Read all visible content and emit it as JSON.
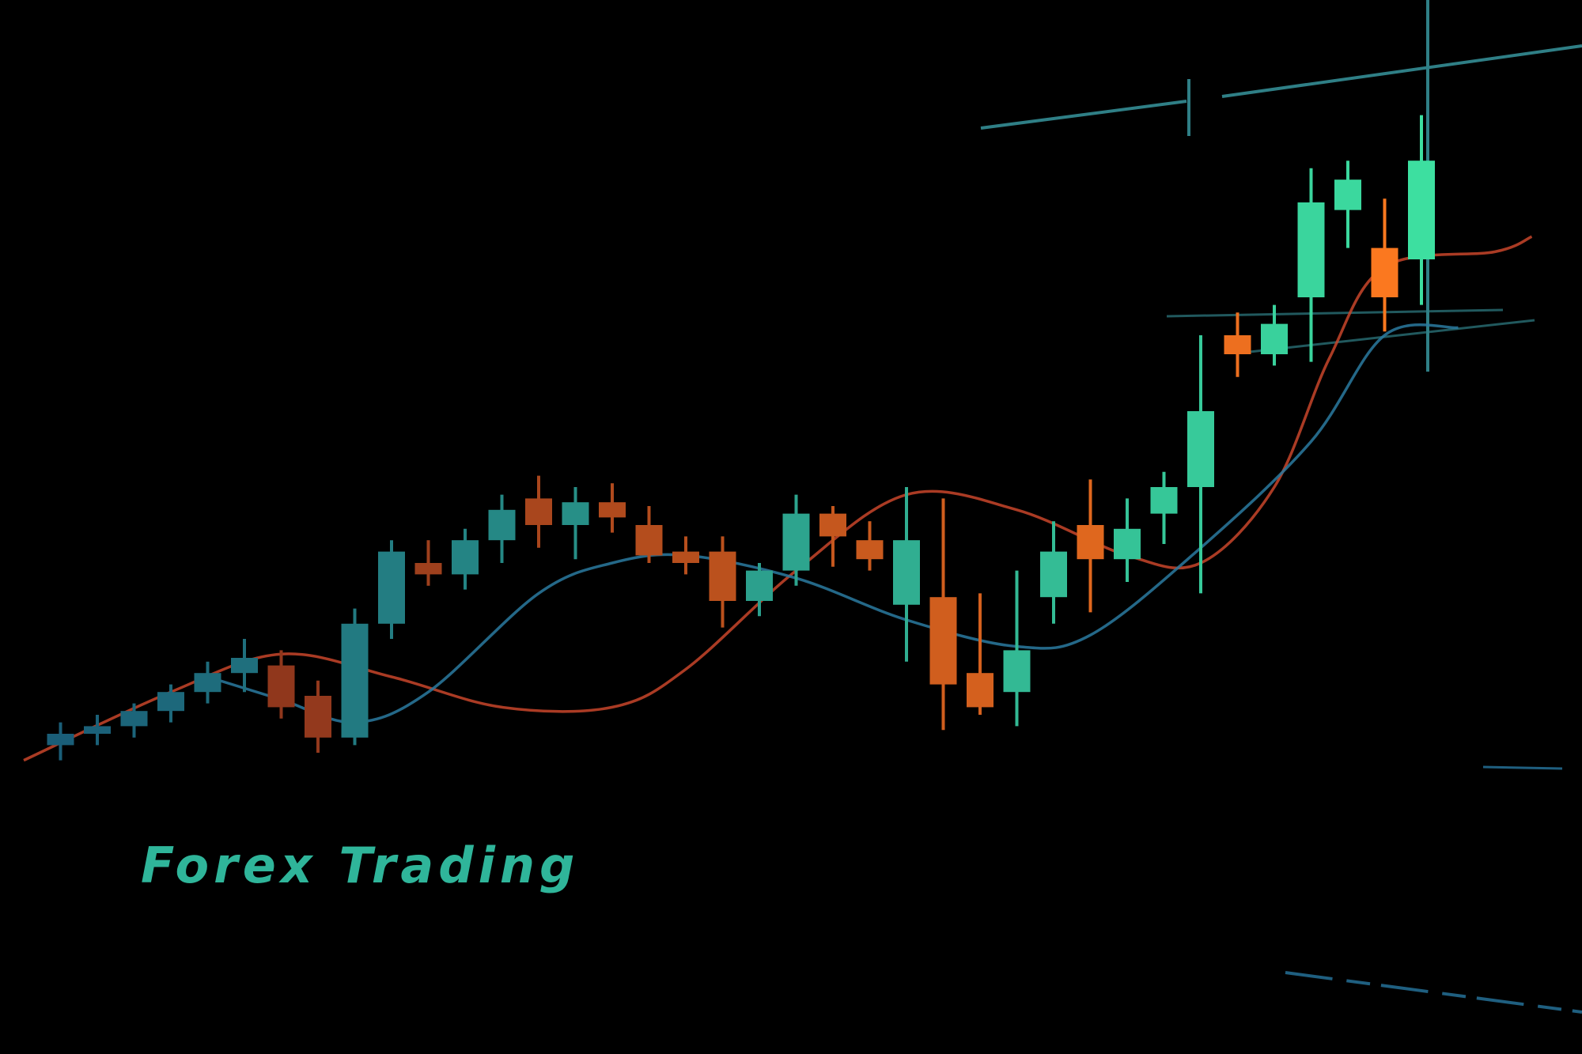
{
  "caption": {
    "text": "Forex Trading",
    "color": "#2fb59a"
  },
  "colors": {
    "background": "#000000",
    "bullish_low": "#1a5e78",
    "bullish_high": "#3ddfa0",
    "bearish_low": "#7a2a1c",
    "bearish_high": "#ff7a1f",
    "ma_red": "#c8452a",
    "ma_blue": "#2a7aa0",
    "level_line": "#2f7f86"
  },
  "chart_data": {
    "type": "candlestick",
    "title": "",
    "xlabel": "",
    "ylabel": "",
    "grid": false,
    "ylim": [
      0,
      100
    ],
    "candles": [
      {
        "x": 1,
        "open": 6.0,
        "high": 9.0,
        "low": 4.0,
        "close": 7.5
      },
      {
        "x": 2,
        "open": 7.5,
        "high": 10.0,
        "low": 6.0,
        "close": 8.5
      },
      {
        "x": 3,
        "open": 8.5,
        "high": 11.5,
        "low": 7.0,
        "close": 10.5
      },
      {
        "x": 4,
        "open": 10.5,
        "high": 14.0,
        "low": 9.0,
        "close": 13.0
      },
      {
        "x": 5,
        "open": 13.0,
        "high": 17.0,
        "low": 11.5,
        "close": 15.5
      },
      {
        "x": 6,
        "open": 15.5,
        "high": 20.0,
        "low": 13.0,
        "close": 17.5
      },
      {
        "x": 7,
        "open": 16.5,
        "high": 18.5,
        "low": 9.5,
        "close": 11.0
      },
      {
        "x": 8,
        "open": 12.5,
        "high": 14.5,
        "low": 5.0,
        "close": 7.0
      },
      {
        "x": 9,
        "open": 7.0,
        "high": 24.0,
        "low": 6.0,
        "close": 22.0
      },
      {
        "x": 10,
        "open": 22.0,
        "high": 33.0,
        "low": 20.0,
        "close": 31.5
      },
      {
        "x": 11,
        "open": 30.0,
        "high": 33.0,
        "low": 27.0,
        "close": 28.5
      },
      {
        "x": 12,
        "open": 28.5,
        "high": 34.5,
        "low": 26.5,
        "close": 33.0
      },
      {
        "x": 13,
        "open": 33.0,
        "high": 39.0,
        "low": 30.0,
        "close": 37.0
      },
      {
        "x": 14,
        "open": 38.5,
        "high": 41.5,
        "low": 32.0,
        "close": 35.0
      },
      {
        "x": 15,
        "open": 35.0,
        "high": 40.0,
        "low": 30.5,
        "close": 38.0
      },
      {
        "x": 16,
        "open": 38.0,
        "high": 40.5,
        "low": 34.0,
        "close": 36.0
      },
      {
        "x": 17,
        "open": 35.0,
        "high": 37.5,
        "low": 30.0,
        "close": 31.0
      },
      {
        "x": 18,
        "open": 31.5,
        "high": 33.5,
        "low": 28.5,
        "close": 30.0
      },
      {
        "x": 19,
        "open": 31.5,
        "high": 33.5,
        "low": 21.5,
        "close": 25.0
      },
      {
        "x": 20,
        "open": 25.0,
        "high": 30.0,
        "low": 23.0,
        "close": 29.0
      },
      {
        "x": 21,
        "open": 29.0,
        "high": 39.0,
        "low": 27.0,
        "close": 36.5
      },
      {
        "x": 22,
        "open": 36.5,
        "high": 37.5,
        "low": 29.5,
        "close": 33.5
      },
      {
        "x": 23,
        "open": 33.0,
        "high": 35.5,
        "low": 29.0,
        "close": 30.5
      },
      {
        "x": 24,
        "open": 24.5,
        "high": 40.0,
        "low": 17.0,
        "close": 33.0
      },
      {
        "x": 25,
        "open": 25.5,
        "high": 38.5,
        "low": 8.0,
        "close": 14.0
      },
      {
        "x": 26,
        "open": 15.5,
        "high": 26.0,
        "low": 10.0,
        "close": 11.0
      },
      {
        "x": 27,
        "open": 13.0,
        "high": 29.0,
        "low": 8.5,
        "close": 18.5
      },
      {
        "x": 28,
        "open": 25.5,
        "high": 35.5,
        "low": 22.0,
        "close": 31.5
      },
      {
        "x": 29,
        "open": 35.0,
        "high": 41.0,
        "low": 23.5,
        "close": 30.5
      },
      {
        "x": 30,
        "open": 30.5,
        "high": 38.5,
        "low": 27.5,
        "close": 34.5
      },
      {
        "x": 31,
        "open": 36.5,
        "high": 42.0,
        "low": 32.5,
        "close": 40.0
      },
      {
        "x": 32,
        "open": 40.0,
        "high": 60.0,
        "low": 26.0,
        "close": 50.0
      },
      {
        "x": 33,
        "open": 60.0,
        "high": 63.0,
        "low": 54.5,
        "close": 57.5
      },
      {
        "x": 34,
        "open": 57.5,
        "high": 64.0,
        "low": 56.0,
        "close": 61.5
      },
      {
        "x": 35,
        "open": 65.0,
        "high": 82.0,
        "low": 56.5,
        "close": 77.5
      },
      {
        "x": 36,
        "open": 76.5,
        "high": 83.0,
        "low": 71.5,
        "close": 80.5
      },
      {
        "x": 37,
        "open": 71.5,
        "high": 78.0,
        "low": 60.5,
        "close": 65.0
      },
      {
        "x": 38,
        "open": 70.0,
        "high": 89.0,
        "low": 64.0,
        "close": 83.0
      }
    ],
    "moving_averages": [
      {
        "color": "ma_red",
        "values": [
          [
            0,
            4.0
          ],
          [
            4,
            13.0
          ],
          [
            7,
            18.0
          ],
          [
            10,
            15.0
          ],
          [
            13,
            11.0
          ],
          [
            16,
            11.0
          ],
          [
            18,
            16.0
          ],
          [
            21,
            29.0
          ],
          [
            24,
            39.0
          ],
          [
            27,
            37.0
          ],
          [
            30,
            31.0
          ],
          [
            32,
            30.0
          ],
          [
            34,
            40.0
          ],
          [
            35.5,
            57.0
          ],
          [
            37,
            69.0
          ],
          [
            40,
            71.0
          ],
          [
            41,
            73.0
          ]
        ]
      },
      {
        "color": "ma_blue",
        "values": [
          [
            5,
            15.0
          ],
          [
            7,
            12.0
          ],
          [
            9,
            9.0
          ],
          [
            11,
            13.0
          ],
          [
            14,
            26.0
          ],
          [
            16,
            30.0
          ],
          [
            18,
            31.0
          ],
          [
            21,
            28.0
          ],
          [
            24,
            22.5
          ],
          [
            27,
            19.0
          ],
          [
            29,
            20.5
          ],
          [
            32,
            32.0
          ],
          [
            35,
            46.0
          ],
          [
            37,
            60.0
          ],
          [
            39,
            61.0
          ]
        ]
      }
    ]
  }
}
